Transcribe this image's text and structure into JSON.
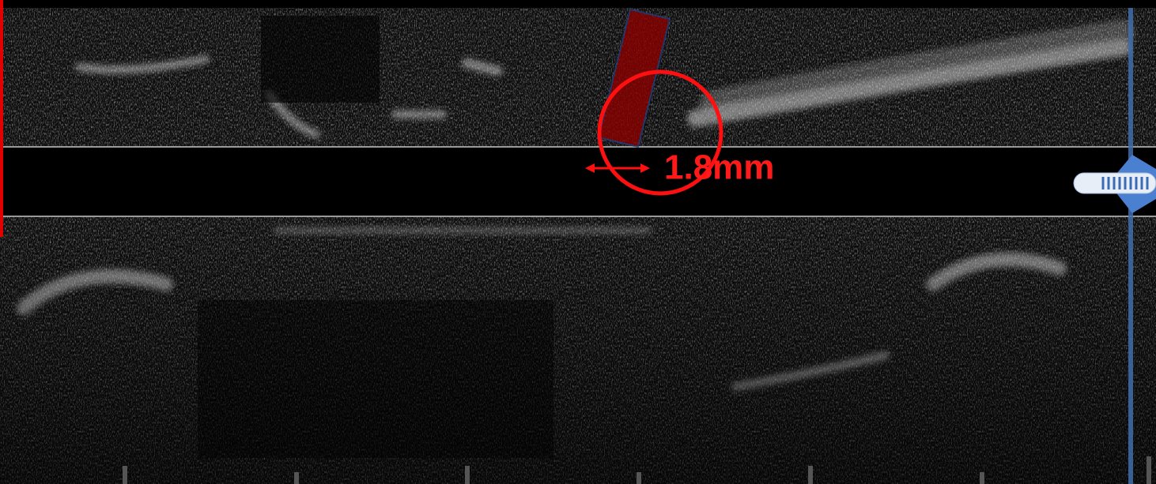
{
  "annotation": {
    "label": "1.8mm"
  }
}
